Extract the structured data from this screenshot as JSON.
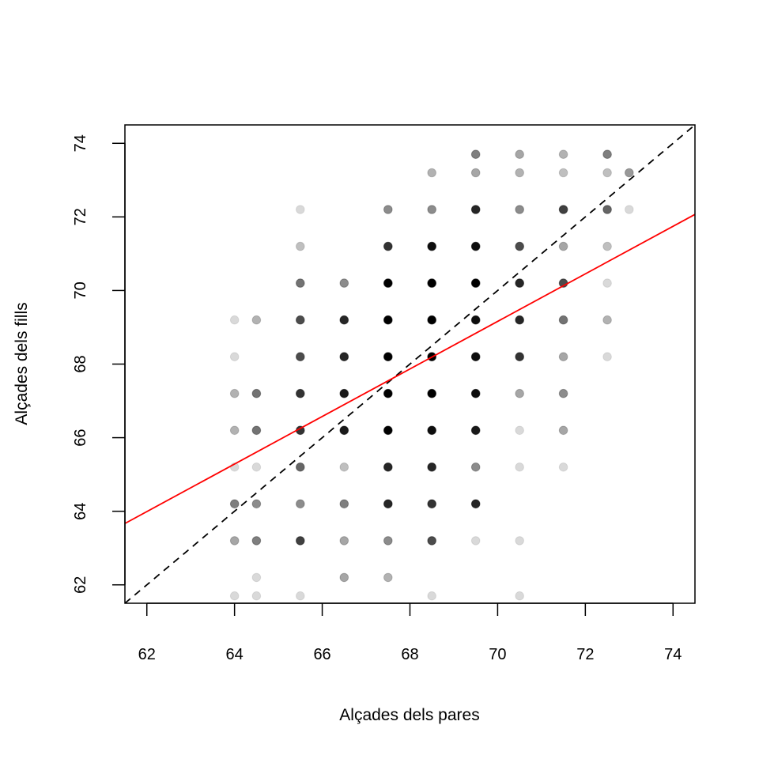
{
  "chart_data": {
    "type": "scatter",
    "title": "",
    "xlabel": "Alçades dels pares",
    "ylabel": "Alçades dels fills",
    "xlim": [
      61.5,
      74.5
    ],
    "ylim": [
      61.5,
      74.5
    ],
    "xticks": [
      62,
      64,
      66,
      68,
      70,
      72,
      74
    ],
    "yticks": [
      62,
      64,
      66,
      68,
      70,
      72,
      74
    ],
    "grid": false,
    "point_color": "#000000",
    "points": [
      [
        64.0,
        61.7,
        0.15
      ],
      [
        64.5,
        61.7,
        0.15
      ],
      [
        65.5,
        61.7,
        0.15
      ],
      [
        68.5,
        61.7,
        0.15
      ],
      [
        70.5,
        61.7,
        0.15
      ],
      [
        64.5,
        62.2,
        0.15
      ],
      [
        66.5,
        62.2,
        0.35
      ],
      [
        67.5,
        62.2,
        0.3
      ],
      [
        64.0,
        63.2,
        0.35
      ],
      [
        64.5,
        63.2,
        0.5
      ],
      [
        65.5,
        63.2,
        0.75
      ],
      [
        66.5,
        63.2,
        0.35
      ],
      [
        67.5,
        63.2,
        0.45
      ],
      [
        68.5,
        63.2,
        0.7
      ],
      [
        69.5,
        63.2,
        0.15
      ],
      [
        70.5,
        63.2,
        0.15
      ],
      [
        64.0,
        64.2,
        0.5
      ],
      [
        64.5,
        64.2,
        0.45
      ],
      [
        65.5,
        64.2,
        0.45
      ],
      [
        66.5,
        64.2,
        0.5
      ],
      [
        67.5,
        64.2,
        0.85
      ],
      [
        68.5,
        64.2,
        0.8
      ],
      [
        69.5,
        64.2,
        0.85
      ],
      [
        64.0,
        65.2,
        0.15
      ],
      [
        64.5,
        65.2,
        0.15
      ],
      [
        65.5,
        65.2,
        0.6
      ],
      [
        66.5,
        65.2,
        0.25
      ],
      [
        67.5,
        65.2,
        0.85
      ],
      [
        68.5,
        65.2,
        0.85
      ],
      [
        69.5,
        65.2,
        0.45
      ],
      [
        70.5,
        65.2,
        0.15
      ],
      [
        71.5,
        65.2,
        0.15
      ],
      [
        64.0,
        66.2,
        0.3
      ],
      [
        64.5,
        66.2,
        0.55
      ],
      [
        65.5,
        66.2,
        0.8
      ],
      [
        66.5,
        66.2,
        0.9
      ],
      [
        67.5,
        66.2,
        1.0
      ],
      [
        68.5,
        66.2,
        0.95
      ],
      [
        69.5,
        66.2,
        0.9
      ],
      [
        70.5,
        66.2,
        0.15
      ],
      [
        71.5,
        66.2,
        0.35
      ],
      [
        64.0,
        67.2,
        0.3
      ],
      [
        64.5,
        67.2,
        0.55
      ],
      [
        65.5,
        67.2,
        0.8
      ],
      [
        66.5,
        67.2,
        0.9
      ],
      [
        67.5,
        67.2,
        1.0
      ],
      [
        68.5,
        67.2,
        1.0
      ],
      [
        69.5,
        67.2,
        0.95
      ],
      [
        70.5,
        67.2,
        0.35
      ],
      [
        71.5,
        67.2,
        0.45
      ],
      [
        64.0,
        68.2,
        0.15
      ],
      [
        65.5,
        68.2,
        0.7
      ],
      [
        66.5,
        68.2,
        0.85
      ],
      [
        67.5,
        68.2,
        1.0
      ],
      [
        68.5,
        68.2,
        1.0
      ],
      [
        69.5,
        68.2,
        0.95
      ],
      [
        70.5,
        68.2,
        0.8
      ],
      [
        71.5,
        68.2,
        0.35
      ],
      [
        72.5,
        68.2,
        0.15
      ],
      [
        64.0,
        69.2,
        0.15
      ],
      [
        64.5,
        69.2,
        0.3
      ],
      [
        65.5,
        69.2,
        0.7
      ],
      [
        66.5,
        69.2,
        0.85
      ],
      [
        67.5,
        69.2,
        1.0
      ],
      [
        68.5,
        69.2,
        1.0
      ],
      [
        69.5,
        69.2,
        0.95
      ],
      [
        70.5,
        69.2,
        0.85
      ],
      [
        71.5,
        69.2,
        0.55
      ],
      [
        72.5,
        69.2,
        0.3
      ],
      [
        65.5,
        70.2,
        0.55
      ],
      [
        66.5,
        70.2,
        0.45
      ],
      [
        67.5,
        70.2,
        1.0
      ],
      [
        68.5,
        70.2,
        1.0
      ],
      [
        69.5,
        70.2,
        1.0
      ],
      [
        70.5,
        70.2,
        0.85
      ],
      [
        71.5,
        70.2,
        0.7
      ],
      [
        72.5,
        70.2,
        0.15
      ],
      [
        65.5,
        71.2,
        0.25
      ],
      [
        67.5,
        71.2,
        0.8
      ],
      [
        68.5,
        71.2,
        0.95
      ],
      [
        69.5,
        71.2,
        0.95
      ],
      [
        70.5,
        71.2,
        0.7
      ],
      [
        71.5,
        71.2,
        0.35
      ],
      [
        72.5,
        71.2,
        0.25
      ],
      [
        65.5,
        72.2,
        0.15
      ],
      [
        67.5,
        72.2,
        0.45
      ],
      [
        68.5,
        72.2,
        0.45
      ],
      [
        69.5,
        72.2,
        0.85
      ],
      [
        70.5,
        72.2,
        0.45
      ],
      [
        71.5,
        72.2,
        0.75
      ],
      [
        72.5,
        72.2,
        0.6
      ],
      [
        73.0,
        72.2,
        0.15
      ],
      [
        68.5,
        73.2,
        0.3
      ],
      [
        69.5,
        73.2,
        0.35
      ],
      [
        70.5,
        73.2,
        0.3
      ],
      [
        71.5,
        73.2,
        0.25
      ],
      [
        72.5,
        73.2,
        0.25
      ],
      [
        73.0,
        73.2,
        0.4
      ],
      [
        69.5,
        73.7,
        0.5
      ],
      [
        70.5,
        73.7,
        0.35
      ],
      [
        71.5,
        73.7,
        0.3
      ],
      [
        72.5,
        73.7,
        0.5
      ]
    ],
    "lines": [
      {
        "kind": "identity",
        "style": "dashed",
        "color": "#000000",
        "intercept": 0,
        "slope": 1
      },
      {
        "kind": "regression",
        "style": "solid",
        "color": "#ff0000",
        "intercept": 23.94,
        "slope": 0.646
      }
    ]
  }
}
